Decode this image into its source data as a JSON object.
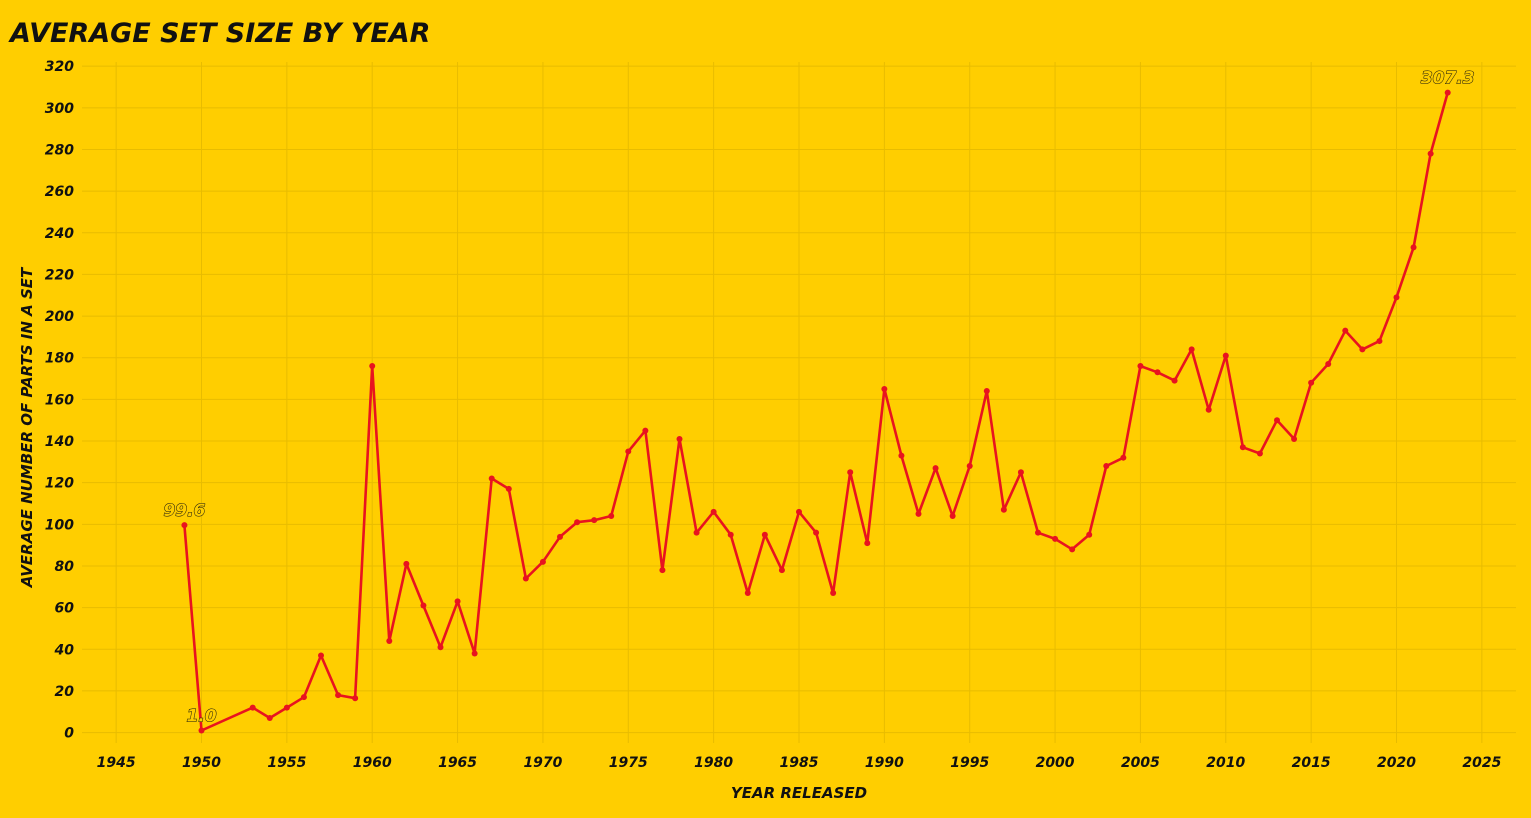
{
  "colors": {
    "background": "#FFCE00",
    "line": "#E8131F",
    "text": "#111111",
    "grid": "#E8BC00"
  },
  "chart_data": {
    "type": "line",
    "title": "AVERAGE SET SIZE BY YEAR",
    "xlabel": "YEAR RELEASED",
    "ylabel": "AVERAGE NUMBER OF PARTS IN A SET",
    "xlim": [
      1943,
      2027
    ],
    "ylim": [
      -5,
      322
    ],
    "xticks": [
      1945,
      1950,
      1955,
      1960,
      1965,
      1970,
      1975,
      1980,
      1985,
      1990,
      1995,
      2000,
      2005,
      2010,
      2015,
      2020,
      2025
    ],
    "yticks": [
      0,
      20,
      40,
      60,
      80,
      100,
      120,
      140,
      160,
      180,
      200,
      220,
      240,
      260,
      280,
      300,
      320
    ],
    "grid": true,
    "series": [
      {
        "points": [
          [
            1949,
            99.6
          ],
          [
            1950,
            1.0
          ],
          [
            1953,
            12
          ],
          [
            1954,
            7
          ],
          [
            1955,
            12
          ],
          [
            1956,
            17
          ],
          [
            1957,
            37
          ],
          [
            1958,
            18
          ],
          [
            1959,
            16.5
          ],
          [
            1960,
            176
          ],
          [
            1961,
            44
          ],
          [
            1962,
            81
          ],
          [
            1963,
            61
          ],
          [
            1964,
            41
          ],
          [
            1965,
            63
          ],
          [
            1966,
            38
          ],
          [
            1967,
            122
          ],
          [
            1968,
            117
          ],
          [
            1969,
            74
          ],
          [
            1970,
            82
          ],
          [
            1971,
            94
          ],
          [
            1972,
            101
          ],
          [
            1973,
            102
          ],
          [
            1974,
            104
          ],
          [
            1975,
            135
          ],
          [
            1976,
            145
          ],
          [
            1977,
            78
          ],
          [
            1978,
            141
          ],
          [
            1979,
            96
          ],
          [
            1980,
            106
          ],
          [
            1981,
            95
          ],
          [
            1982,
            67
          ],
          [
            1983,
            95
          ],
          [
            1984,
            78
          ],
          [
            1985,
            106
          ],
          [
            1986,
            96
          ],
          [
            1987,
            67
          ],
          [
            1988,
            125
          ],
          [
            1989,
            91
          ],
          [
            1990,
            165
          ],
          [
            1991,
            133
          ],
          [
            1992,
            105
          ],
          [
            1993,
            127
          ],
          [
            1994,
            104
          ],
          [
            1995,
            128
          ],
          [
            1996,
            164
          ],
          [
            1997,
            107
          ],
          [
            1998,
            125
          ],
          [
            1999,
            96
          ],
          [
            2000,
            93
          ],
          [
            2001,
            88
          ],
          [
            2002,
            95
          ],
          [
            2003,
            128
          ],
          [
            2004,
            132
          ],
          [
            2005,
            176
          ],
          [
            2006,
            173
          ],
          [
            2007,
            169
          ],
          [
            2008,
            184
          ],
          [
            2009,
            155
          ],
          [
            2010,
            181
          ],
          [
            2011,
            137
          ],
          [
            2012,
            134
          ],
          [
            2013,
            150
          ],
          [
            2014,
            141
          ],
          [
            2015,
            168
          ],
          [
            2016,
            177
          ],
          [
            2017,
            193
          ],
          [
            2018,
            184
          ],
          [
            2019,
            188
          ],
          [
            2020,
            209
          ],
          [
            2021,
            233
          ],
          [
            2022,
            278
          ],
          [
            2023,
            307.3
          ]
        ]
      }
    ],
    "annotations": [
      {
        "year": 1949,
        "value": 99.6,
        "text": "99.6"
      },
      {
        "year": 1950,
        "value": 1.0,
        "text": "1.0"
      },
      {
        "year": 2023,
        "value": 307.3,
        "text": "307.3"
      }
    ]
  }
}
